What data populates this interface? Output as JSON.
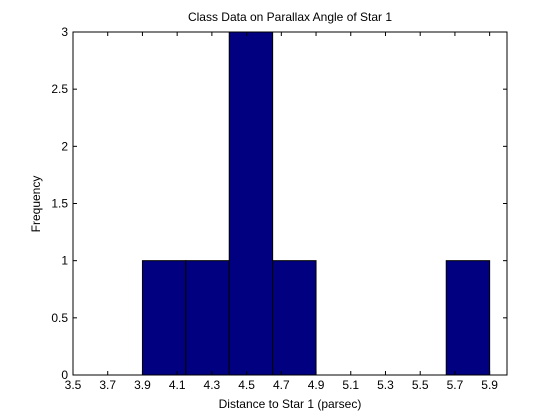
{
  "chart_data": {
    "type": "bar",
    "title": "Class Data on Parallax Angle of Star 1",
    "xlabel": "Distance to Star 1 (parsec)",
    "ylabel": "Frequency",
    "xlim": [
      3.5,
      6.0
    ],
    "ylim": [
      0,
      3
    ],
    "xticks": [
      "3.5",
      "3.7",
      "3.9",
      "4.1",
      "4.3",
      "4.5",
      "4.7",
      "4.9",
      "5.1",
      "5.3",
      "5.5",
      "5.7",
      "5.9"
    ],
    "yticks": [
      "0",
      "0.5",
      "1",
      "1.5",
      "2",
      "2.5",
      "3"
    ],
    "bins": [
      {
        "start": 3.9,
        "end": 4.15,
        "value": 1
      },
      {
        "start": 4.15,
        "end": 4.4,
        "value": 1
      },
      {
        "start": 4.4,
        "end": 4.65,
        "value": 3
      },
      {
        "start": 4.65,
        "end": 4.9,
        "value": 1
      },
      {
        "start": 5.65,
        "end": 5.9,
        "value": 1
      }
    ],
    "bar_color": "#000080",
    "grid": false,
    "legend": "none"
  }
}
